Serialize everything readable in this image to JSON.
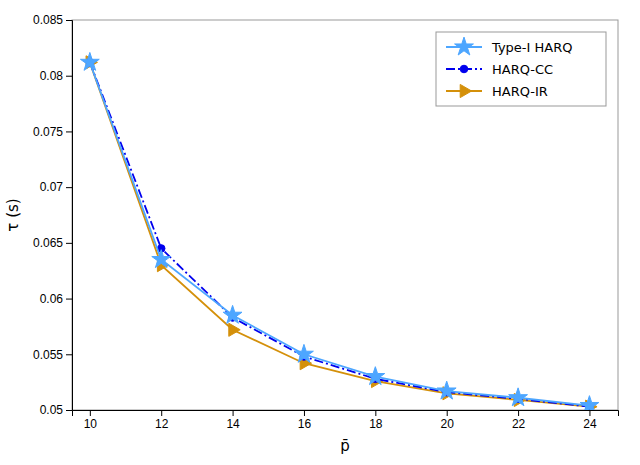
{
  "chart_data": {
    "type": "line",
    "xlabel": "p̄",
    "ylabel": "τ (s)",
    "x": [
      10,
      12,
      14,
      16,
      18,
      20,
      22,
      24
    ],
    "series": [
      {
        "name": "Type-I HARQ",
        "color": "#4da6ff",
        "marker": "star",
        "line_style": "solid",
        "values": [
          0.0812,
          0.0635,
          0.0585,
          0.055,
          0.053,
          0.0517,
          0.0511,
          0.0504
        ]
      },
      {
        "name": "HARQ-CC",
        "color": "#0000ee",
        "marker": "circle",
        "line_style": "dash-dot",
        "values": [
          0.0812,
          0.0645,
          0.0583,
          0.0548,
          0.0528,
          0.0516,
          0.051,
          0.0503
        ]
      },
      {
        "name": "HARQ-IR",
        "color": "#d4900a",
        "marker": "triangle-right",
        "line_style": "solid",
        "values": [
          0.0812,
          0.063,
          0.0572,
          0.0542,
          0.0526,
          0.0515,
          0.0509,
          0.0503
        ]
      }
    ],
    "xlim": [
      9.5,
      24.8
    ],
    "ylim": [
      0.05,
      0.085
    ],
    "xticks": [
      10,
      12,
      14,
      16,
      18,
      20,
      22,
      24
    ],
    "yticks": [
      0.05,
      0.055,
      0.06,
      0.065,
      0.07,
      0.075,
      0.08,
      0.085
    ],
    "legend": "upper right",
    "grid": false
  }
}
